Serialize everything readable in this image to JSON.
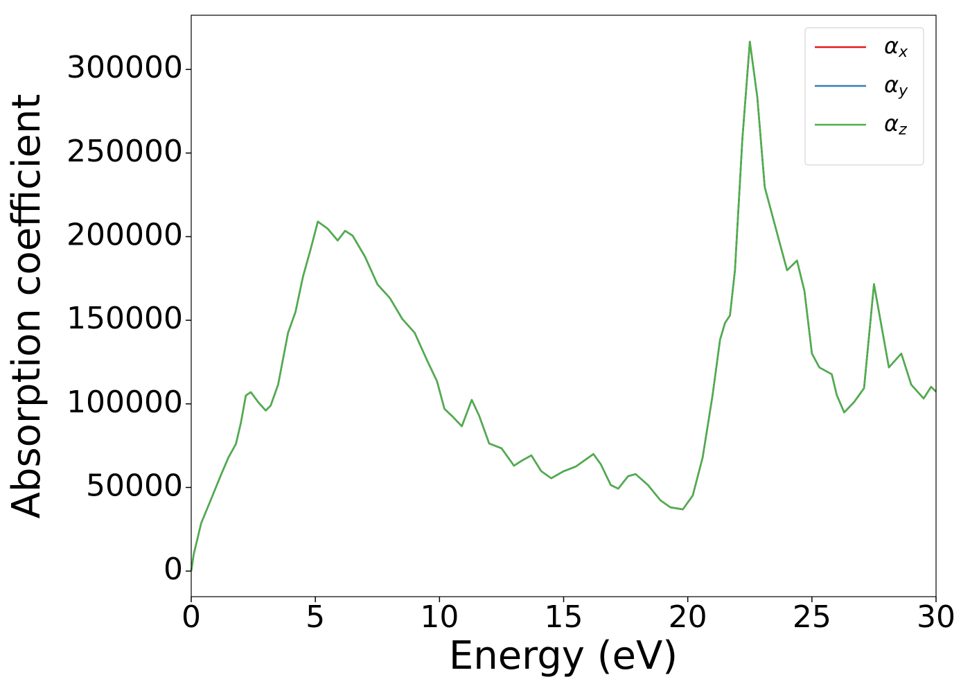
{
  "chart_data": {
    "type": "line",
    "xlabel": "Energy (eV)",
    "ylabel": "Absorption coefficient",
    "x": [
      0,
      0.1,
      0.4,
      0.8,
      1.2,
      1.5,
      1.8,
      2.0,
      2.2,
      2.4,
      2.7,
      3.0,
      3.2,
      3.5,
      3.9,
      4.2,
      4.5,
      4.8,
      5.1,
      5.5,
      5.9,
      6.2,
      6.5,
      7.0,
      7.5,
      8.0,
      8.5,
      9.0,
      9.5,
      9.9,
      10.2,
      10.5,
      10.9,
      11.3,
      11.6,
      12.0,
      12.5,
      13.0,
      13.3,
      13.7,
      14.1,
      14.5,
      15.0,
      15.5,
      16.2,
      16.5,
      16.9,
      17.2,
      17.6,
      17.9,
      18.4,
      18.9,
      19.3,
      19.8,
      20.2,
      20.6,
      21.0,
      21.3,
      21.5,
      21.7,
      21.9,
      22.2,
      22.5,
      22.8,
      23.1,
      23.4,
      23.7,
      24.0,
      24.4,
      24.7,
      25.0,
      25.3,
      25.8,
      26.0,
      26.3,
      26.7,
      27.1,
      27.5,
      27.8,
      28.1,
      28.6,
      29.0,
      29.5,
      29.8,
      30.0
    ],
    "series": [
      {
        "name": "αx",
        "color": "#e41a1c",
        "values": [
          0,
          10000,
          28600,
          43000,
          57600,
          68000,
          76000,
          88700,
          105000,
          107000,
          101000,
          96000,
          99000,
          111500,
          142500,
          155000,
          176000,
          192000,
          209000,
          204700,
          197700,
          203500,
          200600,
          188000,
          171500,
          163300,
          150800,
          142500,
          126000,
          113500,
          97000,
          92800,
          86600,
          102400,
          92800,
          76300,
          73400,
          63000,
          65900,
          69200,
          59700,
          55500,
          59700,
          62600,
          70000,
          63800,
          51400,
          49300,
          56800,
          58000,
          51400,
          42300,
          38100,
          36900,
          45200,
          68000,
          105300,
          138400,
          148400,
          152900,
          179900,
          258600,
          316600,
          283500,
          229600,
          213000,
          196400,
          179900,
          185700,
          167400,
          130100,
          121800,
          117700,
          105300,
          94900,
          101100,
          109400,
          171600,
          146700,
          121800,
          130100,
          111500,
          103200,
          110200,
          107300
        ]
      },
      {
        "name": "αy",
        "color": "#377eb8",
        "values": [
          0,
          10000,
          28600,
          43000,
          57600,
          68000,
          76000,
          88700,
          105000,
          107000,
          101000,
          96000,
          99000,
          111500,
          142500,
          155000,
          176000,
          192000,
          209000,
          204700,
          197700,
          203500,
          200600,
          188000,
          171500,
          163300,
          150800,
          142500,
          126000,
          113500,
          97000,
          92800,
          86600,
          102400,
          92800,
          76300,
          73400,
          63000,
          65900,
          69200,
          59700,
          55500,
          59700,
          62600,
          70000,
          63800,
          51400,
          49300,
          56800,
          58000,
          51400,
          42300,
          38100,
          36900,
          45200,
          68000,
          105300,
          138400,
          148400,
          152900,
          179900,
          258600,
          316600,
          283500,
          229600,
          213000,
          196400,
          179900,
          185700,
          167400,
          130100,
          121800,
          117700,
          105300,
          94900,
          101100,
          109400,
          171600,
          146700,
          121800,
          130100,
          111500,
          103200,
          110200,
          107300
        ]
      },
      {
        "name": "αz",
        "color": "#4daf4a",
        "values": [
          0,
          10000,
          28600,
          43000,
          57600,
          68000,
          76000,
          88700,
          105000,
          107000,
          101000,
          96000,
          99000,
          111500,
          142500,
          155000,
          176000,
          192000,
          209000,
          204700,
          197700,
          203500,
          200600,
          188000,
          171500,
          163300,
          150800,
          142500,
          126000,
          113500,
          97000,
          92800,
          86600,
          102400,
          92800,
          76300,
          73400,
          63000,
          65900,
          69200,
          59700,
          55500,
          59700,
          62600,
          70000,
          63800,
          51400,
          49300,
          56800,
          58000,
          51400,
          42300,
          38100,
          36900,
          45200,
          68000,
          105300,
          138400,
          148400,
          152900,
          179900,
          258600,
          316600,
          283500,
          229600,
          213000,
          196400,
          179900,
          185700,
          167400,
          130100,
          121800,
          117700,
          105300,
          94900,
          101100,
          109400,
          171600,
          146700,
          121800,
          130100,
          111500,
          103200,
          110200,
          107300
        ]
      }
    ],
    "xlim": [
      0,
      30
    ],
    "xticks": [
      0,
      5,
      10,
      15,
      20,
      25,
      30
    ],
    "ylim": [
      -15300,
      332400
    ],
    "yticks": [
      0,
      50000,
      100000,
      150000,
      200000,
      250000,
      300000
    ],
    "legend": "upper right"
  }
}
